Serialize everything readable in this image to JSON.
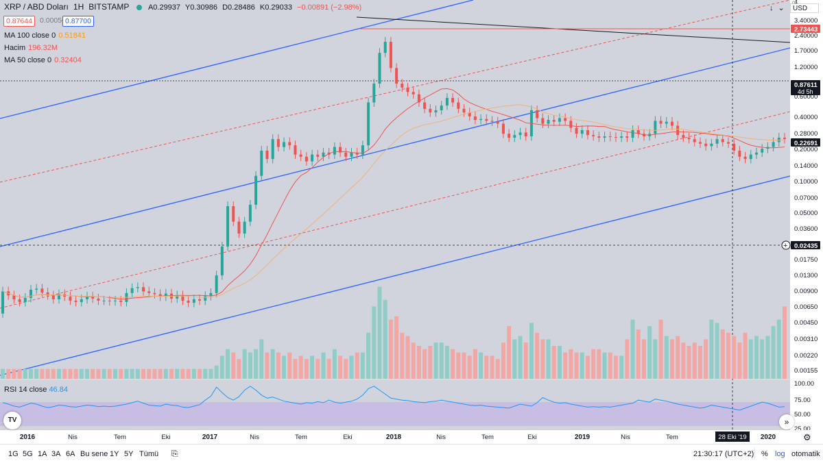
{
  "header": {
    "symbol": "XRP / ABD Doları",
    "interval": "1H",
    "exchange": "BITSTAMP",
    "open": "A0.29937",
    "high": "Y0.30986",
    "low": "D0.28486",
    "close": "K0.29033",
    "change": "−0.00891 (−2.98%)",
    "status_color": "#26a69a",
    "sell_price": "0.87644",
    "spread": "0.00056",
    "buy_price": "0.87700",
    "currency": "USD",
    "lock_icon": "lock-icon"
  },
  "indicators": {
    "ma100_label": "MA 100 close 0",
    "ma100_value": "0.51841",
    "volume_label": "Hacim",
    "volume_value": "196.32M",
    "ma50_label": "MA 50 close 0",
    "ma50_value": "0.32404",
    "rsi_label": "RSI 14 close",
    "rsi_value": "46.84"
  },
  "chart_data": {
    "type": "candlestick",
    "scale": "log",
    "price_axis": {
      "ticks": [
        "3.40000",
        "2.40000",
        "1.70000",
        "1.20000",
        "0.60000",
        "0.40000",
        "0.28000",
        "0.20000",
        "0.14000",
        "0.10000",
        "0.07000",
        "0.05000",
        "0.03600",
        "0.01750",
        "0.01300",
        "0.00900",
        "0.00650",
        "0.00450",
        "0.00310",
        "0.00220",
        "0.00155"
      ],
      "top_partial": "4",
      "labels": [
        {
          "value": "2.73443",
          "color": "#ef5350"
        },
        {
          "value": "0.87611",
          "sub": "4d 5h",
          "color": "#131722"
        },
        {
          "value": "0.22691",
          "color": "#131722"
        },
        {
          "value": "0.02435",
          "color": "#131722"
        }
      ]
    },
    "rsi_axis": {
      "ticks": [
        "100.00",
        "75.00",
        "50.00",
        "25.00"
      ]
    },
    "time_axis": {
      "ticks": [
        "2016",
        "Nis",
        "Tem",
        "Eki",
        "2017",
        "Nis",
        "Tem",
        "Eki",
        "2018",
        "Nis",
        "Tem",
        "Eki",
        "2019",
        "Nis",
        "Tem",
        "2020"
      ],
      "crosshair_label": "28 Eki '19"
    },
    "price_series": [
      [
        0.0044,
        0.0075
      ],
      [
        0.0075,
        0.0068
      ],
      [
        0.0068,
        0.0062
      ],
      [
        0.0062,
        0.0058
      ],
      [
        0.0058,
        0.0064
      ],
      [
        0.0064,
        0.0078
      ],
      [
        0.0078,
        0.008
      ],
      [
        0.008,
        0.0073
      ],
      [
        0.0073,
        0.0068
      ],
      [
        0.0068,
        0.0062
      ],
      [
        0.0062,
        0.007
      ],
      [
        0.007,
        0.0066
      ],
      [
        0.0066,
        0.006
      ],
      [
        0.006,
        0.0058
      ],
      [
        0.0058,
        0.0062
      ],
      [
        0.0062,
        0.0066
      ],
      [
        0.0066,
        0.0063
      ],
      [
        0.0063,
        0.006
      ],
      [
        0.006,
        0.006
      ],
      [
        0.006,
        0.0059
      ],
      [
        0.0059,
        0.006
      ],
      [
        0.006,
        0.0058
      ],
      [
        0.0058,
        0.0072
      ],
      [
        0.0072,
        0.0081
      ],
      [
        0.0081,
        0.0083
      ],
      [
        0.0083,
        0.0075
      ],
      [
        0.0075,
        0.0072
      ],
      [
        0.0072,
        0.007
      ],
      [
        0.007,
        0.0066
      ],
      [
        0.0066,
        0.0071
      ],
      [
        0.0071,
        0.0063
      ],
      [
        0.0063,
        0.0068
      ],
      [
        0.0068,
        0.006
      ],
      [
        0.006,
        0.0057
      ],
      [
        0.0057,
        0.0062
      ],
      [
        0.0062,
        0.006
      ],
      [
        0.006,
        0.0067
      ],
      [
        0.0067,
        0.0072
      ],
      [
        0.0072,
        0.011
      ],
      [
        0.011,
        0.022
      ],
      [
        0.022,
        0.058
      ],
      [
        0.058,
        0.04
      ],
      [
        0.04,
        0.03
      ],
      [
        0.03,
        0.04
      ],
      [
        0.04,
        0.06
      ],
      [
        0.06,
        0.12
      ],
      [
        0.12,
        0.22
      ],
      [
        0.22,
        0.18
      ],
      [
        0.18,
        0.29
      ],
      [
        0.29,
        0.24
      ],
      [
        0.24,
        0.27
      ],
      [
        0.27,
        0.25
      ],
      [
        0.25,
        0.2
      ],
      [
        0.2,
        0.19
      ],
      [
        0.19,
        0.17
      ],
      [
        0.17,
        0.2
      ],
      [
        0.2,
        0.19
      ],
      [
        0.19,
        0.21
      ],
      [
        0.21,
        0.2
      ],
      [
        0.2,
        0.24
      ],
      [
        0.24,
        0.21
      ],
      [
        0.21,
        0.19
      ],
      [
        0.19,
        0.21
      ],
      [
        0.21,
        0.2
      ],
      [
        0.2,
        0.25
      ],
      [
        0.25,
        0.7
      ],
      [
        0.7,
        1.1
      ],
      [
        1.1,
        2.3
      ],
      [
        2.3,
        3.0
      ],
      [
        3.0,
        1.6
      ],
      [
        1.6,
        1.1
      ],
      [
        1.1,
        1.0
      ],
      [
        1.0,
        0.9
      ],
      [
        0.9,
        0.85
      ],
      [
        0.85,
        0.7
      ],
      [
        0.7,
        0.6
      ],
      [
        0.6,
        0.55
      ],
      [
        0.55,
        0.58
      ],
      [
        0.58,
        0.65
      ],
      [
        0.65,
        0.78
      ],
      [
        0.78,
        0.7
      ],
      [
        0.7,
        0.6
      ],
      [
        0.6,
        0.55
      ],
      [
        0.55,
        0.5
      ],
      [
        0.5,
        0.46
      ],
      [
        0.46,
        0.47
      ],
      [
        0.47,
        0.45
      ],
      [
        0.45,
        0.44
      ],
      [
        0.44,
        0.42
      ],
      [
        0.42,
        0.33
      ],
      [
        0.33,
        0.3
      ],
      [
        0.3,
        0.32
      ],
      [
        0.32,
        0.34
      ],
      [
        0.34,
        0.31
      ],
      [
        0.31,
        0.58
      ],
      [
        0.58,
        0.48
      ],
      [
        0.48,
        0.42
      ],
      [
        0.42,
        0.46
      ],
      [
        0.46,
        0.44
      ],
      [
        0.44,
        0.48
      ],
      [
        0.48,
        0.45
      ],
      [
        0.45,
        0.38
      ],
      [
        0.38,
        0.33
      ],
      [
        0.33,
        0.36
      ],
      [
        0.36,
        0.32
      ],
      [
        0.32,
        0.31
      ],
      [
        0.31,
        0.3
      ],
      [
        0.3,
        0.31
      ],
      [
        0.31,
        0.305
      ],
      [
        0.305,
        0.3
      ],
      [
        0.3,
        0.31
      ],
      [
        0.31,
        0.3
      ],
      [
        0.3,
        0.36
      ],
      [
        0.36,
        0.33
      ],
      [
        0.33,
        0.31
      ],
      [
        0.31,
        0.33
      ],
      [
        0.33,
        0.45
      ],
      [
        0.45,
        0.42
      ],
      [
        0.42,
        0.44
      ],
      [
        0.44,
        0.4
      ],
      [
        0.4,
        0.32
      ],
      [
        0.32,
        0.3
      ],
      [
        0.3,
        0.29
      ],
      [
        0.29,
        0.27
      ],
      [
        0.27,
        0.26
      ],
      [
        0.26,
        0.245
      ],
      [
        0.245,
        0.26
      ],
      [
        0.26,
        0.29
      ],
      [
        0.29,
        0.27
      ],
      [
        0.27,
        0.26
      ],
      [
        0.26,
        0.22
      ],
      [
        0.22,
        0.19
      ],
      [
        0.19,
        0.18
      ],
      [
        0.18,
        0.2
      ],
      [
        0.2,
        0.21
      ],
      [
        0.21,
        0.23
      ],
      [
        0.23,
        0.24
      ],
      [
        0.24,
        0.27
      ],
      [
        0.27,
        0.3
      ],
      [
        0.3,
        0.29
      ]
    ],
    "volume_series": [
      0.3,
      0.3,
      0.3,
      0.3,
      0.3,
      0.3,
      0.3,
      0.3,
      0.3,
      0.3,
      0.3,
      0.3,
      0.3,
      0.3,
      0.3,
      0.3,
      0.3,
      0.3,
      0.3,
      0.3,
      0.3,
      0.3,
      0.3,
      0.3,
      0.3,
      0.3,
      0.3,
      0.3,
      0.3,
      0.3,
      0.3,
      0.3,
      0.3,
      0.3,
      0.3,
      0.3,
      0.3,
      0.3,
      0.4,
      0.7,
      0.9,
      0.8,
      0.6,
      0.9,
      0.8,
      0.9,
      1.2,
      0.8,
      0.9,
      0.8,
      0.7,
      0.8,
      0.6,
      0.7,
      0.6,
      0.7,
      0.6,
      0.8,
      0.6,
      0.9,
      0.7,
      0.6,
      0.7,
      0.8,
      0.8,
      1.4,
      2.2,
      2.8,
      2.4,
      1.8,
      1.9,
      1.4,
      1.3,
      1.1,
      1.0,
      0.9,
      1.0,
      1.1,
      1.1,
      1.0,
      0.9,
      0.8,
      0.8,
      0.7,
      0.9,
      0.8,
      0.7,
      0.7,
      0.6,
      1.1,
      1.6,
      1.2,
      1.3,
      1.1,
      1.7,
      1.4,
      1.2,
      1.2,
      1.0,
      1.0,
      0.8,
      0.9,
      0.8,
      0.8,
      0.7,
      0.9,
      0.9,
      0.8,
      0.8,
      0.7,
      0.7,
      1.2,
      1.8,
      1.5,
      1.2,
      1.6,
      1.2,
      1.8,
      1.3,
      1.2,
      1.3,
      1.1,
      1.0,
      1.1,
      1.0,
      1.2,
      1.8,
      1.7,
      1.5,
      1.4,
      1.3,
      1.1,
      1.4,
      1.2,
      1.3,
      1.2,
      1.3,
      1.6,
      1.8,
      2.2,
      2.4,
      2.6
    ],
    "rsi_series": [
      55,
      52,
      48,
      46,
      50,
      54,
      52,
      48,
      45,
      47,
      50,
      49,
      47,
      46,
      48,
      50,
      49,
      47,
      48,
      47,
      48,
      50,
      52,
      55,
      58,
      54,
      50,
      49,
      48,
      52,
      50,
      49,
      46,
      45,
      48,
      51,
      60,
      68,
      86,
      75,
      65,
      60,
      67,
      80,
      88,
      80,
      70,
      64,
      66,
      62,
      58,
      56,
      54,
      52,
      55,
      54,
      57,
      55,
      60,
      56,
      54,
      56,
      58,
      62,
      70,
      83,
      88,
      80,
      72,
      64,
      62,
      60,
      59,
      57,
      56,
      55,
      57,
      58,
      60,
      58,
      56,
      54,
      52,
      50,
      49,
      50,
      48,
      47,
      46,
      45,
      44,
      48,
      52,
      50,
      48,
      55,
      65,
      60,
      56,
      54,
      55,
      52,
      50,
      48,
      46,
      47,
      46,
      47,
      46,
      48,
      50,
      52,
      54,
      60,
      58,
      56,
      62,
      60,
      58,
      55,
      52,
      50,
      48,
      46,
      44,
      46,
      50,
      48,
      46,
      44,
      42,
      40,
      44,
      48,
      52,
      56,
      54,
      50,
      46,
      47
    ]
  },
  "bottom_bar": {
    "ranges": [
      "1G",
      "5G",
      "1A",
      "3A",
      "6A",
      "Bu sene",
      "1Y",
      "5Y",
      "Tümü"
    ],
    "time": "21:30:17 (UTC+2)",
    "percent": "%",
    "log": "log",
    "auto": "otomatik"
  }
}
